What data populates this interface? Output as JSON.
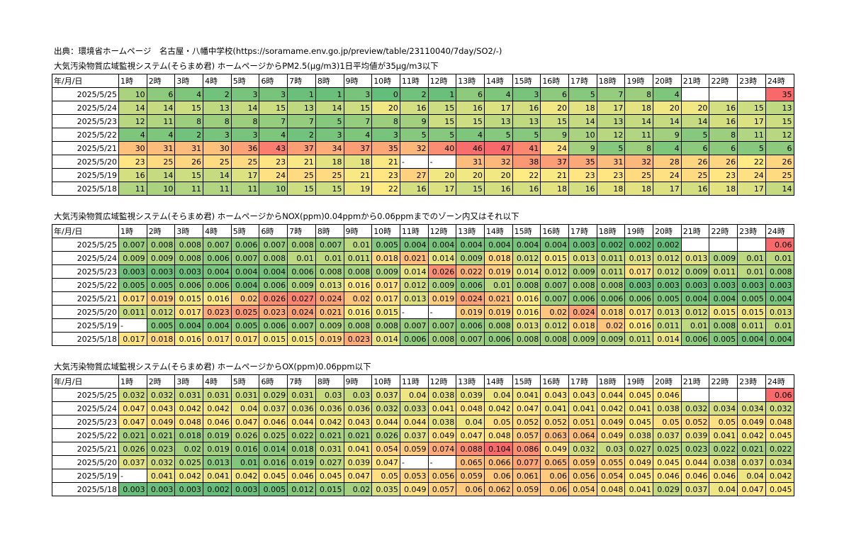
{
  "source_line": "出典：環境省ホームページ　名古屋・八幡中学校(https://soramame.env.go.jp/preview/table/23110040/7day/SO2/-)",
  "header": {
    "date_col": "年/月/日",
    "hours": [
      "1時",
      "2時",
      "3時",
      "4時",
      "5時",
      "6時",
      "7時",
      "8時",
      "9時",
      "10時",
      "11時",
      "12時",
      "13時",
      "14時",
      "15時",
      "16時",
      "17時",
      "18時",
      "19時",
      "20時",
      "21時",
      "22時",
      "23時",
      "24時"
    ]
  },
  "sections": [
    {
      "title": "大気汚染物質広域監視システム(そらまめ君) ホームページからPM2.5(μg/m3)1日平均値が35μg/m3以下",
      "kind": "pm25",
      "rows": [
        {
          "date": "2025/5/25",
          "values": [
            "10",
            "6",
            "4",
            "2",
            "3",
            "3",
            "1",
            "1",
            "3",
            "0",
            "2",
            "1",
            "6",
            "4",
            "3",
            "6",
            "5",
            "7",
            "8",
            "4",
            "",
            "",
            "",
            "35"
          ]
        },
        {
          "date": "2025/5/24",
          "values": [
            "14",
            "14",
            "15",
            "13",
            "14",
            "15",
            "13",
            "14",
            "15",
            "20",
            "16",
            "15",
            "16",
            "17",
            "16",
            "20",
            "18",
            "17",
            "18",
            "20",
            "20",
            "16",
            "15",
            "13"
          ]
        },
        {
          "date": "2025/5/23",
          "values": [
            "12",
            "11",
            "8",
            "8",
            "8",
            "7",
            "7",
            "5",
            "7",
            "8",
            "9",
            "15",
            "15",
            "13",
            "13",
            "15",
            "14",
            "13",
            "14",
            "14",
            "14",
            "16",
            "17",
            "15"
          ]
        },
        {
          "date": "2025/5/22",
          "values": [
            "4",
            "4",
            "2",
            "3",
            "3",
            "4",
            "2",
            "3",
            "4",
            "3",
            "5",
            "5",
            "4",
            "5",
            "5",
            "9",
            "10",
            "12",
            "11",
            "9",
            "5",
            "8",
            "11",
            "12"
          ]
        },
        {
          "date": "2025/5/21",
          "values": [
            "30",
            "31",
            "31",
            "30",
            "36",
            "43",
            "37",
            "34",
            "37",
            "35",
            "32",
            "40",
            "46",
            "47",
            "41",
            "24",
            "9",
            "5",
            "8",
            "4",
            "6",
            "6",
            "5",
            "6"
          ]
        },
        {
          "date": "2025/5/20",
          "values": [
            "23",
            "25",
            "26",
            "25",
            "25",
            "23",
            "21",
            "18",
            "18",
            "21",
            "-",
            "-",
            "31",
            "32",
            "38",
            "37",
            "35",
            "31",
            "32",
            "28",
            "26",
            "26",
            "22",
            "26"
          ]
        },
        {
          "date": "2025/5/19",
          "values": [
            "16",
            "14",
            "15",
            "14",
            "17",
            "24",
            "25",
            "25",
            "21",
            "23",
            "27",
            "20",
            "20",
            "20",
            "22",
            "21",
            "23",
            "23",
            "25",
            "24",
            "25",
            "23",
            "24",
            "25"
          ]
        },
        {
          "date": "2025/5/18",
          "values": [
            "11",
            "10",
            "11",
            "11",
            "11",
            "10",
            "15",
            "15",
            "19",
            "22",
            "16",
            "17",
            "15",
            "16",
            "16",
            "18",
            "16",
            "18",
            "18",
            "17",
            "16",
            "18",
            "17",
            "14"
          ]
        }
      ]
    },
    {
      "title": "大気汚染物質広域監視システム(そらまめ君) ホームページからNOX(ppm)0.04ppmから0.06ppmまでのゾーン内又はそれ以下",
      "kind": "nox",
      "rows": [
        {
          "date": "2025/5/25",
          "values": [
            "0.007",
            "0.008",
            "0.008",
            "0.007",
            "0.006",
            "0.007",
            "0.008",
            "0.007",
            "0.01",
            "0.005",
            "0.004",
            "0.004",
            "0.004",
            "0.004",
            "0.004",
            "0.004",
            "0.003",
            "0.002",
            "0.002",
            "0.002",
            "",
            "",
            "",
            "0.06"
          ]
        },
        {
          "date": "2025/5/24",
          "values": [
            "0.009",
            "0.009",
            "0.008",
            "0.006",
            "0.007",
            "0.008",
            "0.01",
            "0.01",
            "0.011",
            "0.018",
            "0.021",
            "0.014",
            "0.009",
            "0.018",
            "0.012",
            "0.015",
            "0.013",
            "0.011",
            "0.013",
            "0.012",
            "0.013",
            "0.009",
            "0.01",
            "0.01"
          ]
        },
        {
          "date": "2025/5/23",
          "values": [
            "0.003",
            "0.003",
            "0.003",
            "0.004",
            "0.004",
            "0.004",
            "0.006",
            "0.008",
            "0.008",
            "0.009",
            "0.014",
            "0.026",
            "0.022",
            "0.019",
            "0.014",
            "0.012",
            "0.009",
            "0.011",
            "0.017",
            "0.012",
            "0.009",
            "0.011",
            "0.01",
            "0.008"
          ]
        },
        {
          "date": "2025/5/22",
          "values": [
            "0.005",
            "0.005",
            "0.006",
            "0.006",
            "0.004",
            "0.006",
            "0.009",
            "0.013",
            "0.016",
            "0.017",
            "0.012",
            "0.009",
            "0.006",
            "0.01",
            "0.008",
            "0.007",
            "0.008",
            "0.008",
            "0.003",
            "0.003",
            "0.003",
            "0.003",
            "0.003",
            "0.003"
          ]
        },
        {
          "date": "2025/5/21",
          "values": [
            "0.017",
            "0.019",
            "0.015",
            "0.016",
            "0.02",
            "0.026",
            "0.027",
            "0.024",
            "0.02",
            "0.017",
            "0.013",
            "0.019",
            "0.024",
            "0.021",
            "0.016",
            "0.007",
            "0.006",
            "0.006",
            "0.006",
            "0.005",
            "0.004",
            "0.004",
            "0.005",
            "0.004"
          ]
        },
        {
          "date": "2025/5/20",
          "values": [
            "0.011",
            "0.012",
            "0.017",
            "0.023",
            "0.025",
            "0.023",
            "0.024",
            "0.021",
            "0.016",
            "0.015",
            "-",
            "-",
            "0.019",
            "0.019",
            "0.016",
            "0.02",
            "0.024",
            "0.018",
            "0.017",
            "0.013",
            "0.012",
            "0.015",
            "0.015",
            "0.013"
          ]
        },
        {
          "date": "2025/5/19",
          "values": [
            "-",
            "0.005",
            "0.004",
            "0.004",
            "0.005",
            "0.006",
            "0.007",
            "0.009",
            "0.008",
            "0.008",
            "0.007",
            "0.007",
            "0.006",
            "0.008",
            "0.013",
            "0.012",
            "0.018",
            "0.02",
            "0.016",
            "0.011",
            "0.01",
            "0.008",
            "0.011",
            "0.01"
          ]
        },
        {
          "date": "2025/5/18",
          "values": [
            "0.017",
            "0.018",
            "0.016",
            "0.017",
            "0.017",
            "0.015",
            "0.015",
            "0.019",
            "0.023",
            "0.014",
            "0.006",
            "0.008",
            "0.007",
            "0.006",
            "0.008",
            "0.008",
            "0.009",
            "0.009",
            "0.011",
            "0.014",
            "0.006",
            "0.005",
            "0.004",
            "0.004"
          ]
        }
      ]
    },
    {
      "title": "大気汚染物質広域監視システム(そらまめ君) ホームページからOX(ppm)0.06ppm以下",
      "kind": "ox",
      "rows": [
        {
          "date": "2025/5/25",
          "values": [
            "0.032",
            "0.032",
            "0.031",
            "0.031",
            "0.031",
            "0.029",
            "0.031",
            "0.03",
            "0.03",
            "0.037",
            "0.04",
            "0.038",
            "0.039",
            "0.04",
            "0.041",
            "0.043",
            "0.043",
            "0.044",
            "0.045",
            "0.046",
            "",
            "",
            "",
            "0.06"
          ]
        },
        {
          "date": "2025/5/24",
          "values": [
            "0.047",
            "0.043",
            "0.042",
            "0.042",
            "0.04",
            "0.037",
            "0.036",
            "0.036",
            "0.036",
            "0.032",
            "0.033",
            "0.041",
            "0.048",
            "0.042",
            "0.047",
            "0.041",
            "0.041",
            "0.042",
            "0.041",
            "0.038",
            "0.032",
            "0.034",
            "0.034",
            "0.032"
          ]
        },
        {
          "date": "2025/5/23",
          "values": [
            "0.047",
            "0.049",
            "0.048",
            "0.046",
            "0.047",
            "0.046",
            "0.044",
            "0.042",
            "0.043",
            "0.044",
            "0.044",
            "0.038",
            "0.04",
            "0.05",
            "0.052",
            "0.052",
            "0.051",
            "0.049",
            "0.045",
            "0.05",
            "0.052",
            "0.05",
            "0.049",
            "0.048"
          ]
        },
        {
          "date": "2025/5/22",
          "values": [
            "0.021",
            "0.021",
            "0.018",
            "0.019",
            "0.026",
            "0.025",
            "0.022",
            "0.021",
            "0.021",
            "0.026",
            "0.037",
            "0.049",
            "0.047",
            "0.048",
            "0.057",
            "0.063",
            "0.064",
            "0.049",
            "0.038",
            "0.037",
            "0.039",
            "0.041",
            "0.042",
            "0.045"
          ]
        },
        {
          "date": "2025/5/21",
          "values": [
            "0.026",
            "0.023",
            "0.02",
            "0.019",
            "0.016",
            "0.014",
            "0.018",
            "0.031",
            "0.041",
            "0.054",
            "0.059",
            "0.074",
            "0.088",
            "0.104",
            "0.086",
            "0.049",
            "0.032",
            "0.03",
            "0.027",
            "0.025",
            "0.023",
            "0.022",
            "0.021",
            "0.022"
          ]
        },
        {
          "date": "2025/5/20",
          "values": [
            "0.037",
            "0.032",
            "0.025",
            "0.013",
            "0.01",
            "0.016",
            "0.019",
            "0.027",
            "0.039",
            "0.047",
            "-",
            "-",
            "0.065",
            "0.066",
            "0.077",
            "0.065",
            "0.059",
            "0.055",
            "0.049",
            "0.045",
            "0.044",
            "0.038",
            "0.037",
            "0.034"
          ]
        },
        {
          "date": "2025/5/19",
          "values": [
            "-",
            "0.041",
            "0.042",
            "0.041",
            "0.042",
            "0.045",
            "0.046",
            "0.045",
            "0.047",
            "0.05",
            "0.053",
            "0.056",
            "0.059",
            "0.06",
            "0.061",
            "0.06",
            "0.056",
            "0.054",
            "0.045",
            "0.046",
            "0.046",
            "0.046",
            "0.04",
            "0.042"
          ]
        },
        {
          "date": "2025/5/18",
          "values": [
            "0.003",
            "0.003",
            "0.003",
            "0.002",
            "0.003",
            "0.005",
            "0.012",
            "0.015",
            "0.02",
            "0.035",
            "0.049",
            "0.057",
            "0.06",
            "0.062",
            "0.059",
            "0.06",
            "0.054",
            "0.048",
            "0.041",
            "0.029",
            "0.037",
            "0.04",
            "0.047",
            "0.045"
          ]
        }
      ]
    }
  ]
}
